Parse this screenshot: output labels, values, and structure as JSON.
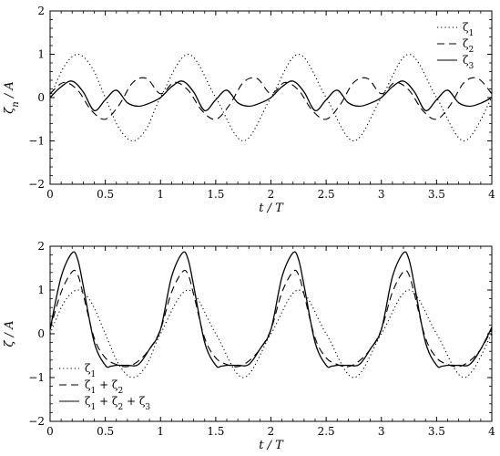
{
  "chart_data": [
    {
      "type": "line",
      "xlabel": "t / T",
      "ylabel": "ζn / A",
      "xlim": [
        0,
        4
      ],
      "ylim": [
        -2,
        2
      ],
      "x_ticks": [
        "0",
        "0.5",
        "1",
        "1.5",
        "2",
        "2.5",
        "3",
        "3.5",
        "4"
      ],
      "y_ticks": [
        "−2",
        "−1",
        "0",
        "1",
        "2"
      ],
      "grid": false,
      "legend_position": "top-right",
      "series": [
        {
          "name": "ζ1",
          "style": "dotted",
          "x": [
            0,
            0.125,
            0.25,
            0.375,
            0.5,
            0.625,
            0.75,
            0.875,
            1,
            1.25,
            1.5,
            1.75,
            2,
            2.25,
            2.5,
            2.75,
            3,
            3.25,
            3.5,
            3.75,
            4
          ],
          "y": [
            0,
            0.71,
            1.0,
            0.71,
            0,
            -0.71,
            -1.0,
            -0.71,
            0,
            1.0,
            0,
            -1.0,
            0,
            1.0,
            0,
            -1.0,
            0,
            1.0,
            0,
            -1.0,
            0
          ]
        },
        {
          "name": "ζ2",
          "style": "dashed",
          "x": [
            0,
            0.125,
            0.25,
            0.375,
            0.5,
            0.625,
            0.75,
            0.875,
            1,
            1.125,
            1.25,
            1.375,
            1.5,
            1.625,
            1.75,
            1.875,
            2,
            2.125,
            2.25,
            2.375,
            2.5,
            2.625,
            2.75,
            2.875,
            3,
            3.125,
            3.25,
            3.375,
            3.5,
            3.625,
            3.75,
            3.875,
            4
          ],
          "y": [
            0.09,
            0.35,
            0.17,
            -0.3,
            -0.5,
            -0.17,
            0.35,
            0.44,
            0.09,
            0.35,
            0.17,
            -0.3,
            -0.5,
            -0.17,
            0.35,
            0.44,
            0.09,
            0.35,
            0.17,
            -0.3,
            -0.5,
            -0.17,
            0.35,
            0.44,
            0.09,
            0.35,
            0.17,
            -0.3,
            -0.5,
            -0.17,
            0.35,
            0.44,
            0.09
          ]
        },
        {
          "name": "ζ3",
          "style": "solid",
          "x": [
            0,
            0.1,
            0.2,
            0.3,
            0.4,
            0.5,
            0.6,
            0.7,
            0.8,
            0.9,
            1,
            1.1,
            1.2,
            1.3,
            1.4,
            1.5,
            1.6,
            1.7,
            1.8,
            1.9,
            2,
            2.1,
            2.2,
            2.3,
            2.4,
            2.5,
            2.6,
            2.7,
            2.8,
            2.9,
            3,
            3.1,
            3.2,
            3.3,
            3.4,
            3.5,
            3.6,
            3.7,
            3.8,
            3.9,
            4
          ],
          "y": [
            0,
            0.25,
            0.38,
            0.13,
            -0.3,
            -0.05,
            0.17,
            -0.12,
            -0.2,
            -0.13,
            0,
            0.25,
            0.38,
            0.13,
            -0.3,
            -0.05,
            0.17,
            -0.12,
            -0.2,
            -0.13,
            0,
            0.25,
            0.38,
            0.13,
            -0.3,
            -0.05,
            0.17,
            -0.12,
            -0.2,
            -0.13,
            0,
            0.25,
            0.38,
            0.13,
            -0.3,
            -0.05,
            0.17,
            -0.12,
            -0.2,
            -0.13,
            0
          ]
        }
      ]
    },
    {
      "type": "line",
      "xlabel": "t / T",
      "ylabel": "ζ / A",
      "xlim": [
        0,
        4
      ],
      "ylim": [
        -2,
        2
      ],
      "x_ticks": [
        "0",
        "0.5",
        "1",
        "1.5",
        "2",
        "2.5",
        "3",
        "3.5",
        "4"
      ],
      "y_ticks": [
        "−2",
        "−1",
        "0",
        "1",
        "2"
      ],
      "grid": false,
      "legend_position": "bottom-left",
      "series": [
        {
          "name": "ζ1",
          "style": "dotted",
          "x": [
            0,
            0.125,
            0.25,
            0.375,
            0.5,
            0.625,
            0.75,
            0.875,
            1,
            1.25,
            1.5,
            1.75,
            2,
            2.25,
            2.5,
            2.75,
            3,
            3.25,
            3.5,
            3.75,
            4
          ],
          "y": [
            0,
            0.71,
            1.0,
            0.71,
            0,
            -0.71,
            -1.0,
            -0.71,
            0,
            1.0,
            0,
            -1.0,
            0,
            1.0,
            0,
            -1.0,
            0,
            1.0,
            0,
            -1.0,
            0
          ]
        },
        {
          "name": "ζ1 + ζ2",
          "style": "dashed",
          "x": [
            0,
            0.1,
            0.2,
            0.25,
            0.3,
            0.4,
            0.5,
            0.6,
            0.7,
            0.8,
            0.9,
            1,
            1.1,
            1.2,
            1.25,
            1.3,
            1.4,
            1.5,
            1.6,
            1.7,
            1.8,
            1.9,
            2,
            2.1,
            2.2,
            2.25,
            2.3,
            2.4,
            2.5,
            2.6,
            2.7,
            2.8,
            2.9,
            3,
            3.1,
            3.2,
            3.25,
            3.3,
            3.4,
            3.5,
            3.6,
            3.7,
            3.8,
            3.9,
            4
          ],
          "y": [
            0.1,
            0.95,
            1.42,
            1.35,
            0.9,
            -0.1,
            -0.55,
            -0.7,
            -0.75,
            -0.62,
            -0.35,
            0.1,
            0.95,
            1.42,
            1.35,
            0.9,
            -0.1,
            -0.55,
            -0.7,
            -0.75,
            -0.62,
            -0.35,
            0.1,
            0.95,
            1.42,
            1.35,
            0.9,
            -0.1,
            -0.55,
            -0.7,
            -0.75,
            -0.62,
            -0.35,
            0.1,
            0.95,
            1.42,
            1.35,
            0.9,
            -0.1,
            -0.55,
            -0.7,
            -0.75,
            -0.62,
            -0.35,
            0.1
          ]
        },
        {
          "name": "ζ1 + ζ2 + ζ3",
          "style": "solid",
          "x": [
            0,
            0.1,
            0.2,
            0.25,
            0.3,
            0.4,
            0.5,
            0.55,
            0.6,
            0.7,
            0.8,
            0.9,
            1,
            1.1,
            1.2,
            1.25,
            1.3,
            1.4,
            1.5,
            1.55,
            1.6,
            1.7,
            1.8,
            1.9,
            2,
            2.1,
            2.2,
            2.25,
            2.3,
            2.4,
            2.5,
            2.55,
            2.6,
            2.7,
            2.8,
            2.9,
            3,
            3.1,
            3.2,
            3.25,
            3.3,
            3.4,
            3.5,
            3.55,
            3.6,
            3.7,
            3.8,
            3.9,
            4
          ],
          "y": [
            0.1,
            1.3,
            1.85,
            1.7,
            1.1,
            -0.2,
            -0.72,
            -0.74,
            -0.72,
            -0.72,
            -0.7,
            -0.35,
            0.1,
            1.3,
            1.85,
            1.7,
            1.1,
            -0.2,
            -0.72,
            -0.74,
            -0.72,
            -0.72,
            -0.7,
            -0.35,
            0.1,
            1.3,
            1.85,
            1.7,
            1.1,
            -0.2,
            -0.72,
            -0.74,
            -0.72,
            -0.72,
            -0.7,
            -0.35,
            0.1,
            1.3,
            1.85,
            1.7,
            1.1,
            -0.2,
            -0.72,
            -0.74,
            -0.72,
            -0.72,
            -0.7,
            -0.35,
            0.15
          ]
        }
      ]
    }
  ]
}
